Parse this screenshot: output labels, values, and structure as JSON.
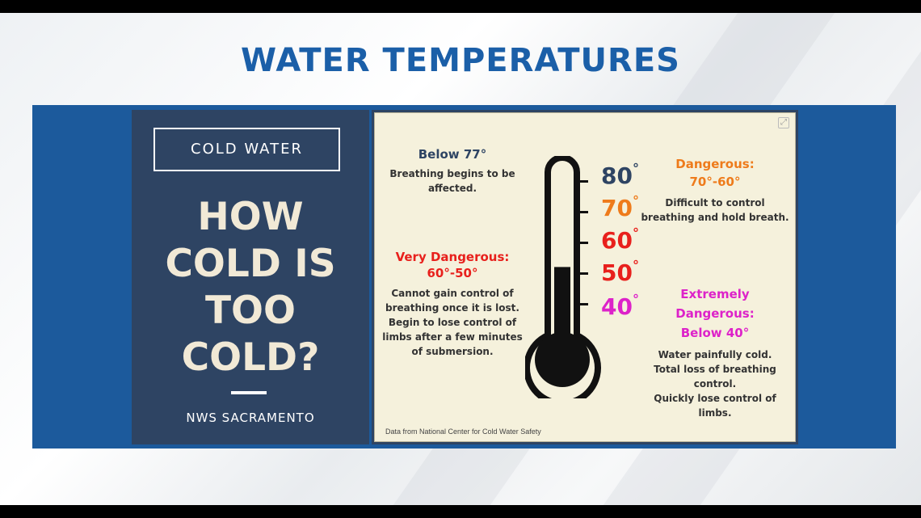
{
  "headline": "WATER TEMPERATURES",
  "left_panel": {
    "tag": "COLD WATER",
    "question_lines": [
      "HOW",
      "COLD IS",
      "TOO",
      "COLD?"
    ],
    "credit": "NWS SACRAMENTO"
  },
  "infographic": {
    "sections": [
      {
        "title": "Below 77°",
        "lines": [
          "Breathing begins to be",
          "affected."
        ]
      },
      {
        "title_lines": [
          "Very Dangerous:",
          "60°-50°"
        ],
        "lines": [
          "Cannot gain control of",
          "breathing once it is lost.",
          "Begin to lose control of",
          "limbs after a few minutes",
          "of submersion."
        ]
      },
      {
        "title_lines": [
          "Dangerous:",
          "70°-60°"
        ],
        "lines": [
          "Difficult to control",
          "breathing and hold breath."
        ]
      },
      {
        "title_lines": [
          "Extremely",
          "Dangerous:",
          "Below 40°"
        ],
        "lines": [
          "Water painfully cold.",
          "Total loss of breathing",
          "control.",
          "Quickly lose control of",
          "limbs."
        ]
      }
    ],
    "scale": [
      {
        "value": "80",
        "color": "#2e4463"
      },
      {
        "value": "70",
        "color": "#ee7b1b"
      },
      {
        "value": "60",
        "color": "#e8201c"
      },
      {
        "value": "50",
        "color": "#e8201c"
      },
      {
        "value": "40",
        "color": "#dd22c9"
      }
    ],
    "degree_symbol": "°",
    "thermometer_fill_top_value": 52,
    "source": "Data from National Center for Cold Water Safety"
  }
}
